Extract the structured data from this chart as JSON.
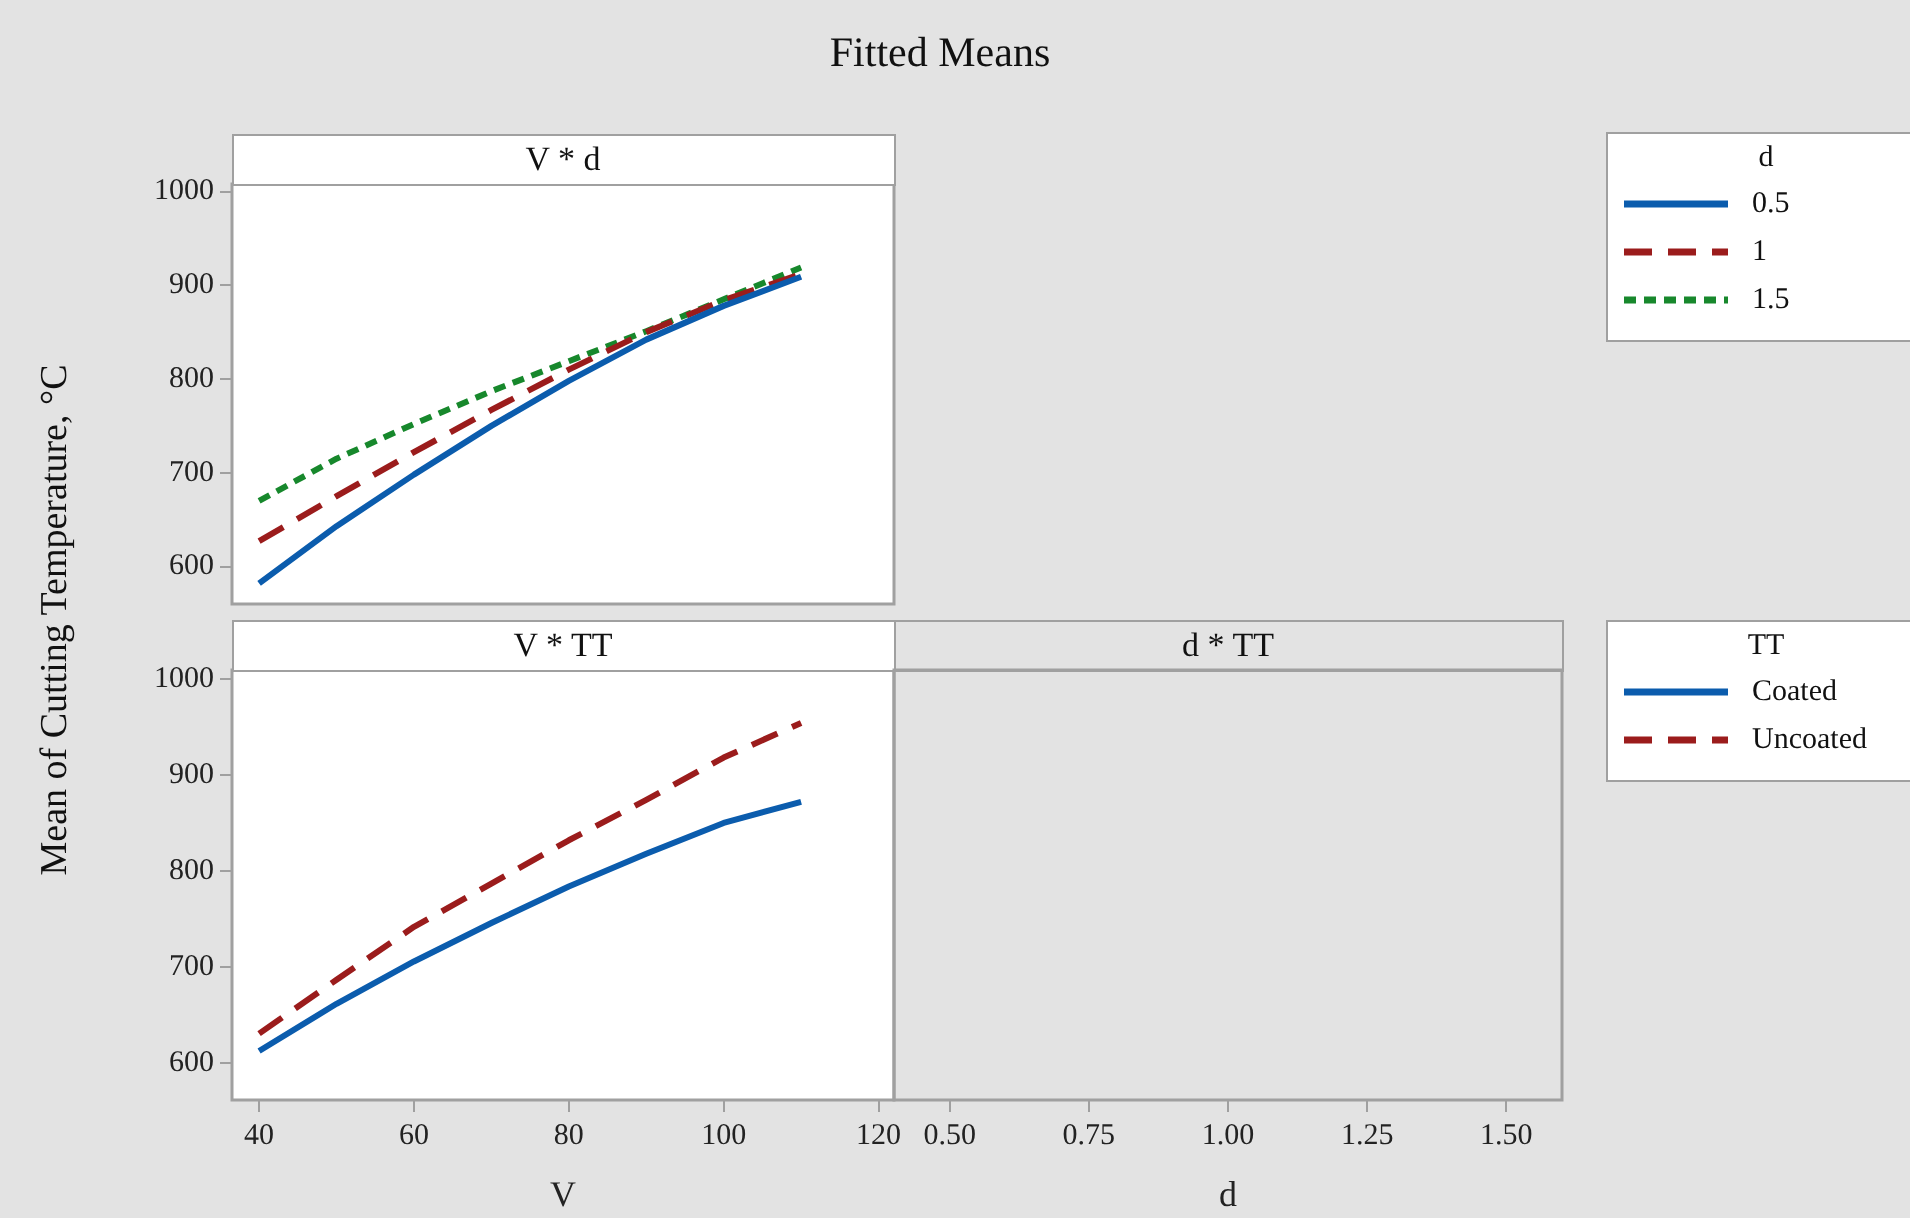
{
  "chart_data": [
    {
      "type": "line",
      "title": "V * d",
      "annotations": [
        "Fitted Means"
      ],
      "ylabel": "Mean of Cutting Temperature, °C",
      "legend_title": "d",
      "legend": "right",
      "tick_labels": "y",
      "x": [
        40,
        50,
        60,
        70,
        80,
        90,
        100,
        110
      ],
      "xlim": [
        36.5,
        122
      ],
      "ylim": [
        560,
        1008
      ],
      "yticks": [
        600,
        700,
        800,
        900,
        1000
      ],
      "series": [
        {
          "name": "0.5",
          "color": "#0b5cad",
          "line_style": "solid",
          "values": [
            582,
            643,
            698,
            750,
            798,
            842,
            878,
            909
          ]
        },
        {
          "name": "1",
          "color": "#9b1c1c",
          "line_style": "dashed",
          "values": [
            627,
            675,
            722,
            767,
            810,
            850,
            884,
            912
          ]
        },
        {
          "name": "1.5",
          "color": "#17882c",
          "line_style": "dotted",
          "values": [
            670,
            715,
            752,
            787,
            819,
            851,
            885,
            919
          ]
        }
      ]
    },
    {
      "type": "line",
      "title": "V * TT",
      "xlabel": "V",
      "legend_title": "TT",
      "legend": "right",
      "x": [
        40,
        50,
        60,
        70,
        80,
        90,
        100,
        110
      ],
      "xlim": [
        36.5,
        122
      ],
      "xticks": [
        40,
        60,
        80,
        100,
        120
      ],
      "ylim": [
        562,
        1009
      ],
      "yticks": [
        600,
        700,
        800,
        900,
        1000
      ],
      "series": [
        {
          "name": "Coated",
          "color": "#0b5cad",
          "line_style": "solid",
          "values": [
            613,
            662,
            706,
            746,
            784,
            818,
            850,
            872
          ]
        },
        {
          "name": "Uncoated",
          "color": "#9b1c1c",
          "line_style": "dashed",
          "values": [
            631,
            687,
            742,
            787,
            832,
            874,
            918,
            954
          ]
        }
      ]
    },
    {
      "type": "line",
      "title": "d * TT",
      "xlabel": "d",
      "tick_labels": "x",
      "xlim": [
        0.4,
        1.6
      ],
      "xticks": [
        {
          "value": 0.5,
          "label": "0.50"
        },
        {
          "value": 0.75,
          "label": "0.75"
        },
        {
          "value": 1,
          "label": "1.00"
        },
        {
          "value": 1.25,
          "label": "1.25"
        },
        {
          "value": 1.5,
          "label": "1.50"
        }
      ],
      "ylim": [
        562,
        1009
      ]
    }
  ]
}
